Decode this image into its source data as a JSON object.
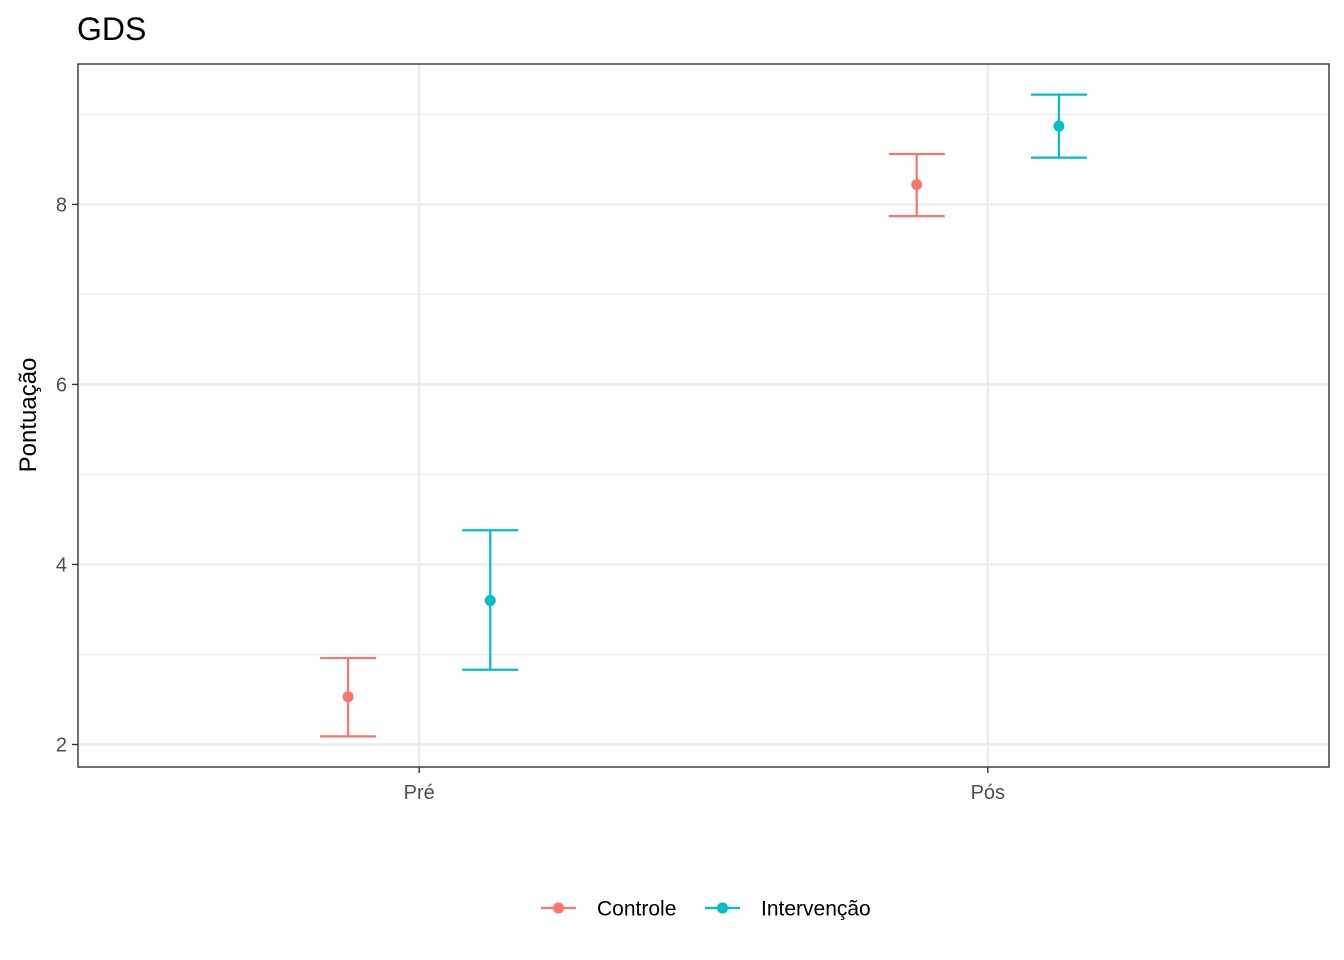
{
  "chart_data": {
    "type": "errorbar",
    "title": "GDS",
    "xlabel": "",
    "ylabel": "Pontuação",
    "categories": [
      "Pré",
      "Pós"
    ],
    "ylim": [
      1.75,
      9.56
    ],
    "yticks": [
      2,
      4,
      6,
      8
    ],
    "grid": true,
    "legend_position": "bottom",
    "series": [
      {
        "name": "Controle",
        "color": "#F8766D",
        "values": [
          2.53,
          8.22
        ],
        "lower": [
          2.09,
          7.87
        ],
        "upper": [
          2.96,
          8.56
        ]
      },
      {
        "name": "Intervenção",
        "color": "#00BFC4",
        "values": [
          3.6,
          8.87
        ],
        "lower": [
          2.83,
          8.52
        ],
        "upper": [
          4.38,
          9.22
        ]
      }
    ]
  }
}
